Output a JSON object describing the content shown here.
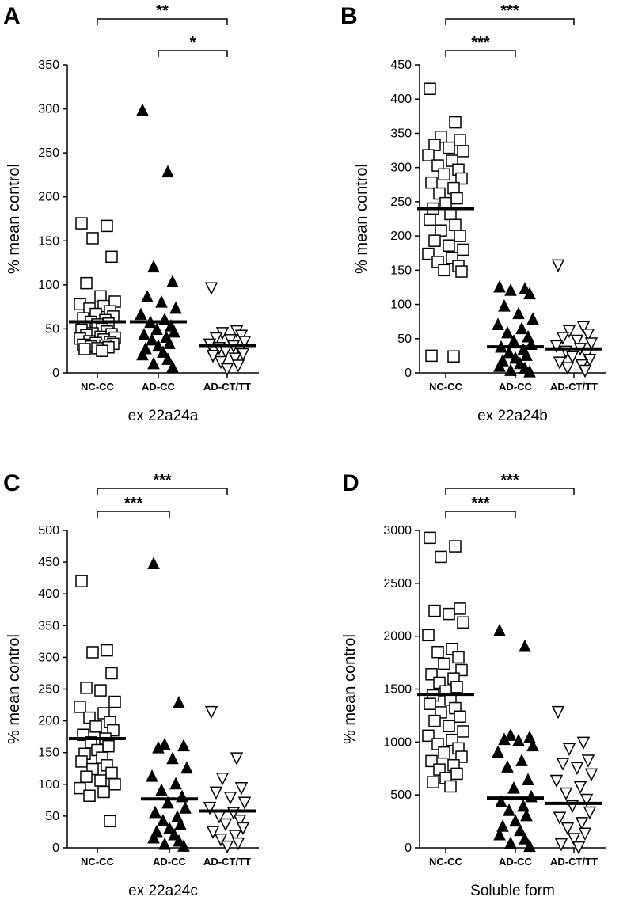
{
  "chart_data": [
    {
      "type": "scatter",
      "panel": "A",
      "xlabel": "ex 22a24a",
      "ylabel": "% mean control",
      "ylim": [
        0,
        350
      ],
      "yticks": [
        0,
        50,
        100,
        150,
        200,
        250,
        300,
        350
      ],
      "categories": [
        "NC-CC",
        "AD-CC",
        "AD-CT/TT"
      ],
      "means": [
        58,
        58,
        31
      ],
      "significance": [
        {
          "from": "NC-CC",
          "to": "AD-CT/TT",
          "label": "**"
        },
        {
          "from": "AD-CC",
          "to": "AD-CT/TT",
          "label": "*"
        }
      ],
      "series": [
        {
          "category": "NC-CC",
          "marker": "open-square",
          "values": [
            170,
            167,
            153,
            132,
            102,
            87,
            81,
            78,
            76,
            73,
            70,
            67,
            64,
            62,
            60,
            58,
            56,
            55,
            52,
            50,
            49,
            47,
            45,
            44,
            43,
            41,
            40,
            39,
            38,
            36,
            35,
            34,
            33,
            32,
            31,
            30,
            29,
            28,
            27,
            25
          ]
        },
        {
          "category": "AD-CC",
          "marker": "filled-triangle",
          "values": [
            298,
            228,
            120,
            103,
            86,
            80,
            73,
            66,
            60,
            57,
            53,
            49,
            46,
            43,
            40,
            37,
            33,
            30,
            27,
            23,
            20,
            15,
            10,
            6
          ]
        },
        {
          "category": "AD-CT/TT",
          "marker": "open-triangle-down",
          "values": [
            97,
            48,
            46,
            43,
            40,
            38,
            36,
            33,
            31,
            29,
            27,
            25,
            22,
            20,
            17,
            13,
            9,
            5
          ]
        }
      ]
    },
    {
      "type": "scatter",
      "panel": "B",
      "xlabel": "ex 22a24b",
      "ylabel": "% mean control",
      "ylim": [
        0,
        450
      ],
      "yticks": [
        0,
        50,
        100,
        150,
        200,
        250,
        300,
        350,
        400,
        450
      ],
      "categories": [
        "NC-CC",
        "AD-CC",
        "AD-CT/TT"
      ],
      "means": [
        240,
        38,
        35
      ],
      "significance": [
        {
          "from": "NC-CC",
          "to": "AD-CT/TT",
          "label": "***"
        },
        {
          "from": "NC-CC",
          "to": "AD-CC",
          "label": "***"
        }
      ],
      "series": [
        {
          "category": "NC-CC",
          "marker": "open-square",
          "values": [
            415,
            366,
            345,
            340,
            333,
            329,
            324,
            318,
            310,
            303,
            297,
            290,
            284,
            278,
            270,
            262,
            255,
            248,
            240,
            232,
            224,
            216,
            208,
            200,
            193,
            186,
            180,
            174,
            168,
            162,
            156,
            150,
            148,
            25,
            24
          ]
        },
        {
          "category": "AD-CC",
          "marker": "filled-triangle",
          "values": [
            125,
            122,
            120,
            115,
            97,
            86,
            78,
            70,
            64,
            58,
            52,
            46,
            41,
            37,
            33,
            29,
            25,
            21,
            17,
            13,
            9,
            6,
            3,
            1
          ]
        },
        {
          "category": "AD-CT/TT",
          "marker": "open-triangle-down",
          "values": [
            158,
            68,
            62,
            57,
            52,
            48,
            44,
            40,
            36,
            32,
            28,
            24,
            20,
            16,
            12,
            8,
            4
          ]
        }
      ]
    },
    {
      "type": "scatter",
      "panel": "C",
      "xlabel": "ex 22a24c",
      "ylabel": "% mean control",
      "ylim": [
        0,
        500
      ],
      "yticks": [
        0,
        50,
        100,
        150,
        200,
        250,
        300,
        350,
        400,
        450,
        500
      ],
      "categories": [
        "NC-CC",
        "AD-CC",
        "AD-CT/TT"
      ],
      "means": [
        172,
        77,
        58
      ],
      "significance": [
        {
          "from": "NC-CC",
          "to": "AD-CT/TT",
          "label": "***"
        },
        {
          "from": "NC-CC",
          "to": "AD-CC",
          "label": "***"
        }
      ],
      "series": [
        {
          "category": "NC-CC",
          "marker": "open-square",
          "values": [
            420,
            311,
            308,
            275,
            252,
            248,
            230,
            222,
            212,
            205,
            198,
            191,
            185,
            178,
            172,
            166,
            160,
            154,
            148,
            142,
            136,
            130,
            124,
            118,
            112,
            106,
            100,
            94,
            88,
            82,
            42
          ]
        },
        {
          "category": "AD-CC",
          "marker": "filled-triangle",
          "values": [
            447,
            228,
            162,
            160,
            157,
            140,
            125,
            112,
            100,
            90,
            80,
            70,
            62,
            55,
            48,
            42,
            36,
            30,
            25,
            20,
            15,
            10,
            5,
            2
          ]
        },
        {
          "category": "AD-CT/TT",
          "marker": "open-triangle-down",
          "values": [
            215,
            142,
            110,
            95,
            88,
            80,
            72,
            64,
            56,
            50,
            44,
            38,
            32,
            26,
            20,
            14,
            8,
            3
          ]
        }
      ]
    },
    {
      "type": "scatter",
      "panel": "D",
      "xlabel": "Soluble form",
      "ylabel": "% mean control",
      "ylim": [
        0,
        3000
      ],
      "yticks": [
        0,
        500,
        1000,
        1500,
        2000,
        2500,
        3000
      ],
      "categories": [
        "NC-CC",
        "AD-CC",
        "AD-CT/TT"
      ],
      "means": [
        1450,
        470,
        420
      ],
      "significance": [
        {
          "from": "NC-CC",
          "to": "AD-CT/TT",
          "label": "***"
        },
        {
          "from": "NC-CC",
          "to": "AD-CC",
          "label": "***"
        }
      ],
      "series": [
        {
          "category": "NC-CC",
          "marker": "open-square",
          "values": [
            2930,
            2850,
            2750,
            2260,
            2240,
            2210,
            2130,
            2010,
            1880,
            1850,
            1800,
            1740,
            1680,
            1640,
            1600,
            1560,
            1520,
            1480,
            1440,
            1400,
            1360,
            1320,
            1280,
            1240,
            1200,
            1150,
            1100,
            1060,
            1020,
            980,
            940,
            900,
            860,
            820,
            780,
            740,
            700,
            660,
            620,
            580
          ]
        },
        {
          "category": "AD-CC",
          "marker": "filled-triangle",
          "values": [
            2050,
            1900,
            1060,
            1040,
            1020,
            1010,
            960,
            900,
            820,
            760,
            640,
            560,
            480,
            430,
            390,
            350,
            300,
            250,
            200,
            160,
            120,
            80,
            40,
            10
          ]
        },
        {
          "category": "AD-CT/TT",
          "marker": "open-triangle-down",
          "values": [
            1290,
            1000,
            940,
            830,
            800,
            760,
            700,
            640,
            580,
            520,
            460,
            400,
            340,
            290,
            240,
            190,
            140,
            90,
            40,
            10
          ]
        }
      ]
    }
  ]
}
